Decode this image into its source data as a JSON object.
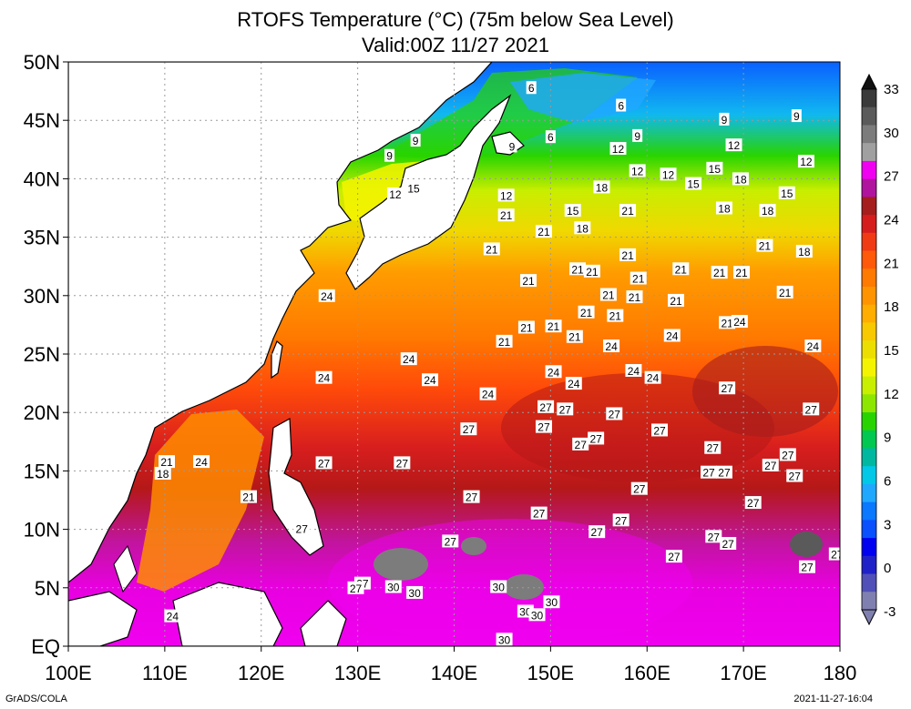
{
  "title": {
    "line1": "RTOFS Temperature (°C) (75m below Sea Level)",
    "line2": "Valid:00Z 11/27 2021"
  },
  "axes": {
    "x_ticks": [
      "100E",
      "110E",
      "120E",
      "130E",
      "140E",
      "150E",
      "160E",
      "170E",
      "180"
    ],
    "x_values": [
      100,
      110,
      120,
      130,
      140,
      150,
      160,
      170,
      180
    ],
    "y_ticks": [
      "EQ",
      "5N",
      "10N",
      "15N",
      "20N",
      "25N",
      "30N",
      "35N",
      "40N",
      "45N",
      "50N"
    ],
    "y_values": [
      0,
      5,
      10,
      15,
      20,
      25,
      30,
      35,
      40,
      45,
      50
    ],
    "lon_range": [
      100,
      180
    ],
    "lat_range": [
      0,
      50
    ]
  },
  "colorbar": {
    "labels": [
      "33",
      "30",
      "27",
      "24",
      "21",
      "18",
      "15",
      "12",
      "9",
      "6",
      "3",
      "0",
      "-3"
    ],
    "colors_top_to_bottom": [
      "#3a3a3a",
      "#5a5a5a",
      "#7c7c7c",
      "#a0a0a0",
      "#f000f0",
      "#b0149e",
      "#a51d1d",
      "#d61d1d",
      "#f03a14",
      "#ff5a0a",
      "#ff7a00",
      "#ff9400",
      "#ffad00",
      "#f8c800",
      "#ecdf00",
      "#f4f400",
      "#c8ee00",
      "#8ce600",
      "#28d400",
      "#00c850",
      "#00b8a0",
      "#00c8e6",
      "#20a8ff",
      "#0a78ff",
      "#0a50ff",
      "#0000f0",
      "#2020c8",
      "#5050b8",
      "#8080b0"
    ]
  },
  "contour_labels": [
    {
      "v": "6",
      "lon": 148.0,
      "lat": 47.8
    },
    {
      "v": "6",
      "lon": 157.3,
      "lat": 46.3
    },
    {
      "v": "9",
      "lon": 159.0,
      "lat": 43.7
    },
    {
      "v": "6",
      "lon": 150.0,
      "lat": 43.6
    },
    {
      "v": "9",
      "lon": 146.0,
      "lat": 42.8
    },
    {
      "v": "12",
      "lon": 157.0,
      "lat": 42.6
    },
    {
      "v": "9",
      "lon": 168.0,
      "lat": 45.1
    },
    {
      "v": "9",
      "lon": 175.5,
      "lat": 45.4
    },
    {
      "v": "12",
      "lon": 169.0,
      "lat": 42.9
    },
    {
      "v": "12",
      "lon": 176.5,
      "lat": 41.5
    },
    {
      "v": "12",
      "lon": 159.0,
      "lat": 40.7
    },
    {
      "v": "12",
      "lon": 162.2,
      "lat": 40.4
    },
    {
      "v": "15",
      "lon": 164.8,
      "lat": 39.6
    },
    {
      "v": "15",
      "lon": 167.0,
      "lat": 40.9
    },
    {
      "v": "18",
      "lon": 169.7,
      "lat": 40.0
    },
    {
      "v": "15",
      "lon": 174.5,
      "lat": 38.8
    },
    {
      "v": "18",
      "lon": 155.3,
      "lat": 39.3
    },
    {
      "v": "9",
      "lon": 133.3,
      "lat": 42.0
    },
    {
      "v": "12",
      "lon": 133.9,
      "lat": 38.7
    },
    {
      "v": "15",
      "lon": 135.8,
      "lat": 39.2
    },
    {
      "v": "9",
      "lon": 136.0,
      "lat": 43.3
    },
    {
      "v": "12",
      "lon": 145.4,
      "lat": 38.6
    },
    {
      "v": "15",
      "lon": 152.3,
      "lat": 37.3
    },
    {
      "v": "18",
      "lon": 168.0,
      "lat": 37.5
    },
    {
      "v": "18",
      "lon": 172.5,
      "lat": 37.3
    },
    {
      "v": "21",
      "lon": 158.0,
      "lat": 37.3
    },
    {
      "v": "21",
      "lon": 145.4,
      "lat": 36.9
    },
    {
      "v": "21",
      "lon": 149.3,
      "lat": 35.5
    },
    {
      "v": "18",
      "lon": 153.3,
      "lat": 35.8
    },
    {
      "v": "21",
      "lon": 172.2,
      "lat": 34.3
    },
    {
      "v": "18",
      "lon": 176.3,
      "lat": 33.8
    },
    {
      "v": "21",
      "lon": 143.9,
      "lat": 34.0
    },
    {
      "v": "21",
      "lon": 158.0,
      "lat": 33.5
    },
    {
      "v": "21",
      "lon": 152.8,
      "lat": 32.3
    },
    {
      "v": "21",
      "lon": 154.3,
      "lat": 32.1
    },
    {
      "v": "21",
      "lon": 163.5,
      "lat": 32.3
    },
    {
      "v": "21",
      "lon": 167.5,
      "lat": 32.0
    },
    {
      "v": "21",
      "lon": 169.8,
      "lat": 32.0
    },
    {
      "v": "21",
      "lon": 159.1,
      "lat": 31.5
    },
    {
      "v": "21",
      "lon": 147.7,
      "lat": 31.3
    },
    {
      "v": "24",
      "lon": 126.8,
      "lat": 30.0
    },
    {
      "v": "21",
      "lon": 156.0,
      "lat": 30.1
    },
    {
      "v": "21",
      "lon": 158.7,
      "lat": 29.9
    },
    {
      "v": "21",
      "lon": 163.0,
      "lat": 29.6
    },
    {
      "v": "21",
      "lon": 174.3,
      "lat": 30.3
    },
    {
      "v": "21",
      "lon": 153.7,
      "lat": 28.6
    },
    {
      "v": "21",
      "lon": 156.7,
      "lat": 28.3
    },
    {
      "v": "21",
      "lon": 168.3,
      "lat": 27.7
    },
    {
      "v": "24",
      "lon": 169.6,
      "lat": 27.8
    },
    {
      "v": "21",
      "lon": 147.5,
      "lat": 27.3
    },
    {
      "v": "21",
      "lon": 150.3,
      "lat": 27.4
    },
    {
      "v": "21",
      "lon": 152.5,
      "lat": 26.5
    },
    {
      "v": "24",
      "lon": 162.6,
      "lat": 26.6
    },
    {
      "v": "21",
      "lon": 145.2,
      "lat": 26.1
    },
    {
      "v": "24",
      "lon": 156.3,
      "lat": 25.7
    },
    {
      "v": "24",
      "lon": 177.2,
      "lat": 25.7
    },
    {
      "v": "24",
      "lon": 135.3,
      "lat": 24.6
    },
    {
      "v": "24",
      "lon": 158.6,
      "lat": 23.6
    },
    {
      "v": "24",
      "lon": 160.6,
      "lat": 23.0
    },
    {
      "v": "24",
      "lon": 150.3,
      "lat": 23.5
    },
    {
      "v": "24",
      "lon": 126.5,
      "lat": 23.0
    },
    {
      "v": "24",
      "lon": 137.5,
      "lat": 22.8
    },
    {
      "v": "24",
      "lon": 152.4,
      "lat": 22.5
    },
    {
      "v": "24",
      "lon": 143.5,
      "lat": 21.6
    },
    {
      "v": "27",
      "lon": 168.3,
      "lat": 22.1
    },
    {
      "v": "27",
      "lon": 149.5,
      "lat": 20.5
    },
    {
      "v": "27",
      "lon": 151.5,
      "lat": 20.3
    },
    {
      "v": "27",
      "lon": 156.6,
      "lat": 19.9
    },
    {
      "v": "27",
      "lon": 177.0,
      "lat": 20.3
    },
    {
      "v": "27",
      "lon": 149.3,
      "lat": 18.8
    },
    {
      "v": "27",
      "lon": 141.5,
      "lat": 18.6
    },
    {
      "v": "27",
      "lon": 161.3,
      "lat": 18.5
    },
    {
      "v": "27",
      "lon": 154.7,
      "lat": 17.8
    },
    {
      "v": "27",
      "lon": 153.1,
      "lat": 17.3
    },
    {
      "v": "27",
      "lon": 166.8,
      "lat": 17.0
    },
    {
      "v": "27",
      "lon": 174.6,
      "lat": 16.4
    },
    {
      "v": "27",
      "lon": 172.8,
      "lat": 15.5
    },
    {
      "v": "27",
      "lon": 126.5,
      "lat": 15.7
    },
    {
      "v": "27",
      "lon": 134.6,
      "lat": 15.7
    },
    {
      "v": "27",
      "lon": 166.4,
      "lat": 14.9
    },
    {
      "v": "27",
      "lon": 168.0,
      "lat": 14.9
    },
    {
      "v": "27",
      "lon": 175.3,
      "lat": 14.6
    },
    {
      "v": "21",
      "lon": 110.2,
      "lat": 15.8
    },
    {
      "v": "24",
      "lon": 113.8,
      "lat": 15.8
    },
    {
      "v": "18",
      "lon": 109.8,
      "lat": 14.8
    },
    {
      "v": "27",
      "lon": 159.2,
      "lat": 13.5
    },
    {
      "v": "27",
      "lon": 141.8,
      "lat": 12.8
    },
    {
      "v": "21",
      "lon": 118.7,
      "lat": 12.8
    },
    {
      "v": "27",
      "lon": 171.0,
      "lat": 12.3
    },
    {
      "v": "27",
      "lon": 148.8,
      "lat": 11.4
    },
    {
      "v": "27",
      "lon": 157.3,
      "lat": 10.8
    },
    {
      "v": "27",
      "lon": 124.2,
      "lat": 10.1
    },
    {
      "v": "27",
      "lon": 154.8,
      "lat": 9.8
    },
    {
      "v": "27",
      "lon": 166.9,
      "lat": 9.4
    },
    {
      "v": "27",
      "lon": 139.6,
      "lat": 9.0
    },
    {
      "v": "27",
      "lon": 168.4,
      "lat": 8.8
    },
    {
      "v": "27",
      "lon": 162.8,
      "lat": 7.7
    },
    {
      "v": "27",
      "lon": 179.7,
      "lat": 7.9
    },
    {
      "v": "27",
      "lon": 176.6,
      "lat": 6.8
    },
    {
      "v": "27",
      "lon": 130.5,
      "lat": 5.4
    },
    {
      "v": "30",
      "lon": 133.7,
      "lat": 5.1
    },
    {
      "v": "27",
      "lon": 129.8,
      "lat": 5.0
    },
    {
      "v": "30",
      "lon": 144.6,
      "lat": 5.1
    },
    {
      "v": "30",
      "lon": 135.9,
      "lat": 4.6
    },
    {
      "v": "30",
      "lon": 150.1,
      "lat": 3.8
    },
    {
      "v": "30",
      "lon": 147.4,
      "lat": 3.0
    },
    {
      "v": "30",
      "lon": 148.6,
      "lat": 2.7
    },
    {
      "v": "24",
      "lon": 110.8,
      "lat": 2.6
    },
    {
      "v": "30",
      "lon": 145.2,
      "lat": 0.6
    }
  ],
  "footer": {
    "left": "GrADS/COLA",
    "right": "2021-11-27-16:04"
  }
}
